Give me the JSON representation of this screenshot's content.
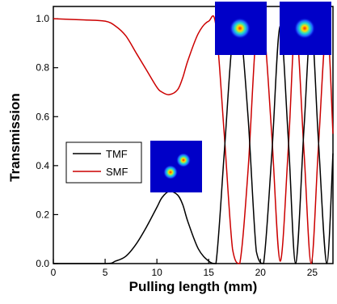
{
  "chart_data": {
    "type": "line",
    "xlabel": "Pulling length (mm)",
    "ylabel": "Transmission",
    "xlim": [
      0,
      27
    ],
    "ylim": [
      0,
      1.05
    ],
    "xticks": [
      "0",
      "5",
      "10",
      "15",
      "20",
      "25"
    ],
    "yticks": [
      "0.0",
      "0.2",
      "0.4",
      "0.6",
      "0.8",
      "1.0"
    ],
    "legend_position": "center-left",
    "grid": false,
    "series": [
      {
        "name": "TMF",
        "color": "#000000",
        "x": [
          0,
          5,
          6,
          7,
          8,
          9,
          10,
          10.5,
          11.2,
          12,
          12.5,
          13,
          14,
          15,
          15.7,
          16.5,
          17.3,
          18,
          18.8,
          19.6,
          20.3,
          21.1,
          21.9,
          22.7,
          23.4,
          24.2,
          24.9,
          25.6,
          26.4,
          27
        ],
        "values": [
          0,
          0,
          0.01,
          0.03,
          0.08,
          0.15,
          0.23,
          0.27,
          0.295,
          0.28,
          0.24,
          0.17,
          0.06,
          0.01,
          0.0,
          0.45,
          0.92,
          0.98,
          0.6,
          0.05,
          0.0,
          0.45,
          0.97,
          0.5,
          0.0,
          0.55,
          0.98,
          0.5,
          0.0,
          0.45
        ]
      },
      {
        "name": "SMF",
        "color": "#cc0000",
        "x": [
          0,
          3,
          5,
          6,
          7,
          8,
          9,
          10,
          10.5,
          11.2,
          12,
          12.5,
          13,
          14,
          15,
          15.7,
          16.5,
          17.3,
          18,
          18.8,
          19.6,
          20.3,
          21.1,
          21.9,
          22.7,
          23.4,
          24.2,
          24.9,
          25.6,
          26.4,
          27
        ],
        "values": [
          1.0,
          0.995,
          0.99,
          0.97,
          0.93,
          0.86,
          0.79,
          0.72,
          0.7,
          0.69,
          0.71,
          0.76,
          0.83,
          0.94,
          0.99,
          0.97,
          0.53,
          0.06,
          0.0,
          0.38,
          0.95,
          0.98,
          0.52,
          0.01,
          0.48,
          0.98,
          0.46,
          0.0,
          0.48,
          0.98,
          0.53
        ]
      }
    ]
  },
  "insets": [
    {
      "name": "mode-inset-lp11",
      "kind": "two-lobe"
    },
    {
      "name": "mode-inset-lp01-a",
      "kind": "single-spot"
    },
    {
      "name": "mode-inset-lp01-b",
      "kind": "single-spot"
    }
  ]
}
